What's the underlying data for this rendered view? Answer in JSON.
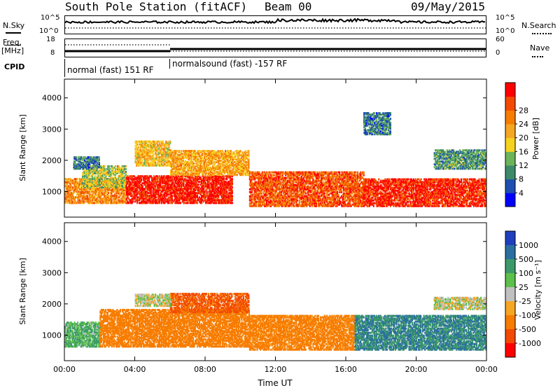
{
  "header": {
    "station": "South Pole Station (fitACF)",
    "beam": "Beam 00",
    "date": "09/May/2015"
  },
  "top_strip": {
    "nsky_label": "N.Sky",
    "nsearch_label": "N.Search",
    "left_ticks": [
      "10^5",
      "10^0"
    ],
    "right_ticks": [
      "10^5",
      "10^0"
    ]
  },
  "freq_strip": {
    "freq_label_line1": "Freq.",
    "freq_label_line2": "[MHz]",
    "nave_label": "Nave",
    "left_ticks": [
      "18",
      "8"
    ],
    "right_ticks": [
      "60",
      "0"
    ]
  },
  "cpid_strip": {
    "cpid_label": "CPID",
    "segments": [
      {
        "label": "normal (fast) 151 RF",
        "start_hour": 0,
        "end_hour": 6
      },
      {
        "label": "normalsound (fast) -157 RF",
        "start_hour": 6,
        "end_hour": 24
      }
    ]
  },
  "colors": {
    "power_scale": [
      "#0000ff",
      "#1f4fb0",
      "#3d8a6a",
      "#6cb35a",
      "#f5d21f",
      "#f5a623",
      "#f77d00",
      "#f24a00",
      "#ff0000"
    ],
    "velocity_scale": [
      "#1f3fbf",
      "#2a6f9f",
      "#3c9a6a",
      "#5cc04a",
      "#c0c0c0",
      "#f5a623",
      "#f77d00",
      "#f24a00",
      "#ff0000"
    ]
  },
  "chart_data": [
    {
      "type": "heatmap",
      "name": "power",
      "ylabel": "Slant Range [km]",
      "ylim": [
        180,
        4600
      ],
      "y_ticks": [
        1000,
        2000,
        3000,
        4000
      ],
      "x_ticks": [
        "00:00",
        "04:00",
        "08:00",
        "12:00",
        "16:00",
        "20:00",
        "00:00"
      ],
      "xlim_hours": [
        0,
        24
      ],
      "colorbar_label": "Power [dB]",
      "colorbar_ticks": [
        "4",
        "8",
        "12",
        "16",
        "20",
        "24",
        "28"
      ],
      "colorbar_range": [
        0,
        32
      ],
      "regions": [
        {
          "t0": 0.0,
          "t1": 3.5,
          "r0": 600,
          "r1": 1400,
          "value": 22
        },
        {
          "t0": 1.0,
          "t1": 3.5,
          "r0": 1100,
          "r1": 1800,
          "value": 14
        },
        {
          "t0": 0.5,
          "t1": 2.0,
          "r0": 1700,
          "r1": 2100,
          "value": 8
        },
        {
          "t0": 3.5,
          "t1": 9.5,
          "r0": 600,
          "r1": 1500,
          "value": 30
        },
        {
          "t0": 4.0,
          "t1": 6.0,
          "r0": 1800,
          "r1": 2600,
          "value": 18
        },
        {
          "t0": 6.0,
          "t1": 10.5,
          "r0": 1500,
          "r1": 2300,
          "value": 20
        },
        {
          "t0": 10.5,
          "t1": 17.0,
          "r0": 500,
          "r1": 1600,
          "value": 26
        },
        {
          "t0": 17.0,
          "t1": 24.0,
          "r0": 500,
          "r1": 1400,
          "value": 29
        },
        {
          "t0": 17.0,
          "t1": 18.5,
          "r0": 2800,
          "r1": 3500,
          "value": 8
        },
        {
          "t0": 21.0,
          "t1": 24.0,
          "r0": 1700,
          "r1": 2300,
          "value": 10
        }
      ]
    },
    {
      "type": "heatmap",
      "name": "velocity",
      "ylabel": "Slant Range [km]",
      "xlabel": "Time UT",
      "ylim": [
        180,
        4600
      ],
      "y_ticks": [
        1000,
        2000,
        3000,
        4000
      ],
      "x_ticks": [
        "00:00",
        "04:00",
        "08:00",
        "12:00",
        "16:00",
        "20:00",
        "00:00"
      ],
      "xlim_hours": [
        0,
        24
      ],
      "colorbar_label": "Velocity [m s⁻¹]",
      "colorbar_ticks": [
        "1000",
        "500",
        "100",
        "25",
        "-25",
        "-100",
        "-500",
        "-1000"
      ],
      "regions": [
        {
          "t0": 0.0,
          "t1": 2.0,
          "r0": 600,
          "r1": 1400,
          "value": 100
        },
        {
          "t0": 2.0,
          "t1": 10.5,
          "r0": 600,
          "r1": 1800,
          "value": -300
        },
        {
          "t0": 6.0,
          "t1": 10.5,
          "r0": 1700,
          "r1": 2300,
          "value": -600
        },
        {
          "t0": 4.0,
          "t1": 6.0,
          "r0": 1900,
          "r1": 2300,
          "value": 0
        },
        {
          "t0": 10.5,
          "t1": 16.5,
          "r0": 500,
          "r1": 1600,
          "value": -200
        },
        {
          "t0": 16.5,
          "t1": 24.0,
          "r0": 500,
          "r1": 1600,
          "value": 500
        },
        {
          "t0": 21.0,
          "t1": 24.0,
          "r0": 1800,
          "r1": 2200,
          "value": 0
        }
      ]
    }
  ]
}
